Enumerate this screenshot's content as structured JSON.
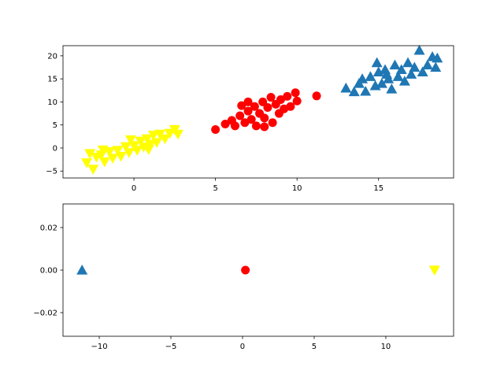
{
  "chart_data": [
    {
      "type": "scatter",
      "xlim": [
        -4.35,
        19.6
      ],
      "ylim": [
        -6.5,
        22.2
      ],
      "xticks": [
        0,
        5,
        10,
        15
      ],
      "yticks": [
        {
          "value": -5,
          "label": "−5"
        },
        0,
        5,
        10,
        15,
        20
      ],
      "series": [
        {
          "color": "#ffff00",
          "marker": "v",
          "x": [
            -2.9,
            -2.5,
            -2.3,
            -2.0,
            -1.8,
            -1.5,
            -1.3,
            -1.0,
            -0.8,
            -0.5,
            -0.3,
            0,
            0.2,
            0.4,
            0.6,
            0.8,
            1.0,
            1.2,
            1.4,
            1.6,
            1.9,
            2.2,
            2.5,
            2.7,
            -1.9,
            -0.2,
            0.9,
            -2.7
          ],
          "y": [
            -3.2,
            -4.6,
            -2.0,
            -1.5,
            -3.0,
            -0.8,
            -2.2,
            -0.5,
            -1.8,
            0.3,
            -1.0,
            0.5,
            -0.5,
            1.5,
            0.2,
            2.0,
            0.8,
            2.8,
            1.2,
            3.0,
            2.0,
            3.2,
            4.0,
            3.0,
            -0.4,
            1.8,
            -0.3,
            -1.2
          ]
        },
        {
          "color": "#ff0000",
          "marker": "o",
          "x": [
            5.0,
            5.6,
            6.0,
            6.2,
            6.5,
            6.6,
            6.8,
            7.0,
            7.2,
            7.4,
            7.5,
            7.7,
            7.9,
            8.0,
            8.2,
            8.4,
            8.5,
            8.7,
            8.9,
            9.0,
            9.2,
            9.4,
            9.6,
            9.9,
            10.0,
            11.2,
            7.0,
            8.0
          ],
          "y": [
            4.0,
            5.2,
            6.0,
            4.8,
            7.0,
            9.2,
            5.5,
            8.0,
            6.2,
            9.0,
            4.8,
            7.5,
            10.0,
            6.5,
            8.8,
            11.0,
            5.5,
            9.5,
            7.5,
            10.5,
            8.5,
            11.2,
            9.0,
            12.0,
            10.2,
            11.3,
            10.0,
            4.6
          ]
        },
        {
          "color": "#1f77b4",
          "marker": "^",
          "x": [
            13.0,
            13.5,
            13.8,
            14.0,
            14.2,
            14.5,
            14.8,
            15.0,
            15.2,
            15.4,
            15.6,
            15.8,
            16.0,
            16.2,
            16.4,
            16.6,
            16.8,
            17.0,
            17.2,
            17.5,
            17.7,
            18.0,
            18.3,
            18.5,
            18.6,
            14.9,
            15.5
          ],
          "y": [
            13.0,
            12.2,
            14.0,
            15.0,
            12.3,
            15.5,
            13.5,
            16.5,
            14.0,
            17.0,
            15.0,
            12.8,
            18.0,
            15.5,
            17.0,
            14.5,
            18.5,
            16.0,
            17.5,
            21.2,
            16.5,
            18.0,
            19.8,
            17.5,
            19.5,
            18.5,
            16.0
          ]
        }
      ]
    },
    {
      "type": "scatter",
      "xlim": [
        -12.53,
        14.73
      ],
      "ylim": [
        -0.0311,
        0.0311
      ],
      "xticks": [
        {
          "value": -10,
          "label": "−10"
        },
        {
          "value": -5,
          "label": "−5"
        },
        0,
        5,
        10
      ],
      "yticks": [
        {
          "value": -0.02,
          "label": "−0.02"
        },
        {
          "value": 0,
          "label": "0.00"
        },
        0.02
      ],
      "series": [
        {
          "color": "#1f77b4",
          "marker": "^",
          "x": [
            -11.2
          ],
          "y": [
            0
          ]
        },
        {
          "color": "#ff0000",
          "marker": "o",
          "x": [
            0.2
          ],
          "y": [
            0
          ]
        },
        {
          "color": "#ffff00",
          "marker": "v",
          "x": [
            13.4
          ],
          "y": [
            0
          ]
        }
      ]
    }
  ]
}
